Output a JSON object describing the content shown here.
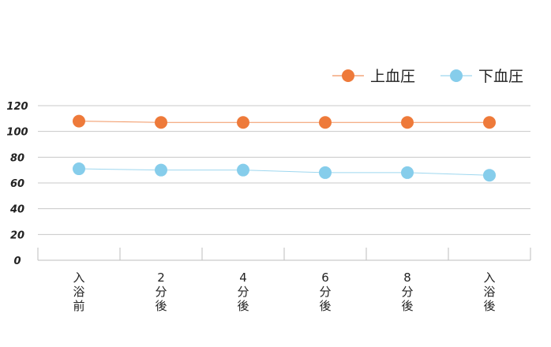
{
  "chart_data": {
    "type": "line",
    "categories": [
      [
        "入",
        "浴",
        "前"
      ],
      [
        "2",
        "分",
        "後"
      ],
      [
        "4",
        "分",
        "後"
      ],
      [
        "6",
        "分",
        "後"
      ],
      [
        "8",
        "分",
        "後"
      ],
      [
        "入",
        "浴",
        "後"
      ]
    ],
    "series": [
      {
        "name": "上血圧",
        "color": "#ee7a3a",
        "values": [
          108,
          107,
          107,
          107,
          107,
          107
        ]
      },
      {
        "name": "下血圧",
        "color": "#86cdeb",
        "values": [
          71,
          70,
          70,
          68,
          68,
          66
        ]
      }
    ],
    "yticks": [
      0,
      20,
      40,
      60,
      80,
      100,
      120
    ],
    "ylim": [
      0,
      120
    ],
    "grid": true,
    "legend_position": "top-right",
    "title": "",
    "xlabel": "",
    "ylabel": ""
  }
}
